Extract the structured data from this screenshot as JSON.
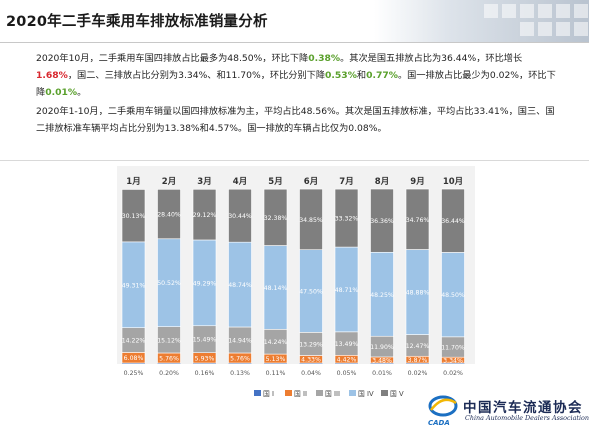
{
  "page": {
    "title": "2020年二手车乘用车排放标准销量分析"
  },
  "text": {
    "p1": [
      {
        "t": "2020年10月，二手乘用车国四排放占比最多为48.50%，环比下降",
        "s": ""
      },
      {
        "t": "0.38%",
        "s": "down"
      },
      {
        "t": "。其次是国五排放占比为36.44%，环比增长",
        "s": ""
      },
      {
        "t": "1.68%",
        "s": "up"
      },
      {
        "t": "，国二、三排放占比分别为3.34%、和11.70%，环比分别下降",
        "s": ""
      },
      {
        "t": "0.53%",
        "s": "down"
      },
      {
        "t": "和",
        "s": ""
      },
      {
        "t": "0.77%",
        "s": "down"
      },
      {
        "t": "。国一排放占比最少为0.02%，环比下降",
        "s": ""
      },
      {
        "t": "0.01%",
        "s": "down"
      },
      {
        "t": "。",
        "s": ""
      }
    ],
    "p2": "2020年1-10月，二手乘用车销量以国四排放标准为主，平均占比48.56%。其次是国五排放标准，平均占比33.41%，国三、国二排放标准车辆平均占比分别为13.38%和4.57%。国一排放的车辆占比仅为0.08%。"
  },
  "logo": {
    "cn": "中国汽车流通协会",
    "en": "China Automobile Dealers Association",
    "mark": "CADA"
  },
  "colors": {
    "国I": "#4472c4",
    "国II": "#ed7d31",
    "国III": "#a5a5a5",
    "国IV": "#9dc3e6",
    "国V": "#7f7f7f"
  },
  "chart_data": {
    "type": "bar",
    "stacked": true,
    "percent": true,
    "categories": [
      "1月",
      "2月",
      "3月",
      "4月",
      "5月",
      "6月",
      "7月",
      "8月",
      "9月",
      "10月"
    ],
    "ylim": [
      0,
      100
    ],
    "grid": false,
    "legend": "bottom",
    "series": [
      {
        "name": "国 I",
        "key": "国I",
        "values": [
          0.25,
          0.2,
          0.16,
          0.13,
          0.11,
          0.04,
          0.05,
          0.01,
          0.02,
          0.02
        ],
        "labels": [
          "0.25%",
          "0.20%",
          "0.16%",
          "0.13%",
          "0.11%",
          "0.04%",
          "0.05%",
          "0.01%",
          "0.02%",
          "0.02%"
        ]
      },
      {
        "name": "国 II",
        "key": "国II",
        "values": [
          6.08,
          5.76,
          5.93,
          5.76,
          5.13,
          4.33,
          4.42,
          3.48,
          3.87,
          3.34
        ],
        "labels": [
          "6.08%",
          "5.76%",
          "5.93%",
          "5.76%",
          "5.13%",
          "4.33%",
          "4.42%",
          "3.48%",
          "3.87%",
          "3.34%"
        ]
      },
      {
        "name": "国 III",
        "key": "国III",
        "values": [
          14.22,
          15.12,
          15.49,
          14.94,
          14.24,
          13.29,
          13.49,
          11.9,
          12.47,
          11.7
        ],
        "labels": [
          "14.22%",
          "15.12%",
          "15.49%",
          "14.94%",
          "14.24%",
          "13.29%",
          "13.49%",
          "11.90%",
          "12.47%",
          "11.70%"
        ]
      },
      {
        "name": "国 IV",
        "key": "国IV",
        "values": [
          49.31,
          50.52,
          49.29,
          48.74,
          48.14,
          47.5,
          48.71,
          48.25,
          48.88,
          48.5
        ],
        "labels": [
          "49.31%",
          "50.52%",
          "49.29%",
          "48.74%",
          "48.14%",
          "47.50%",
          "48.71%",
          "48.25%",
          "48.88%",
          "48.50%"
        ]
      },
      {
        "name": "国 V",
        "key": "国V",
        "values": [
          30.13,
          28.4,
          29.12,
          30.44,
          32.38,
          34.85,
          33.32,
          36.36,
          34.76,
          36.44
        ],
        "labels": [
          "30.13%",
          "28.40%",
          "29.12%",
          "30.44%",
          "32.38%",
          "34.85%",
          "33.32%",
          "36.36%",
          "34.76%",
          "36.44%"
        ]
      }
    ]
  }
}
